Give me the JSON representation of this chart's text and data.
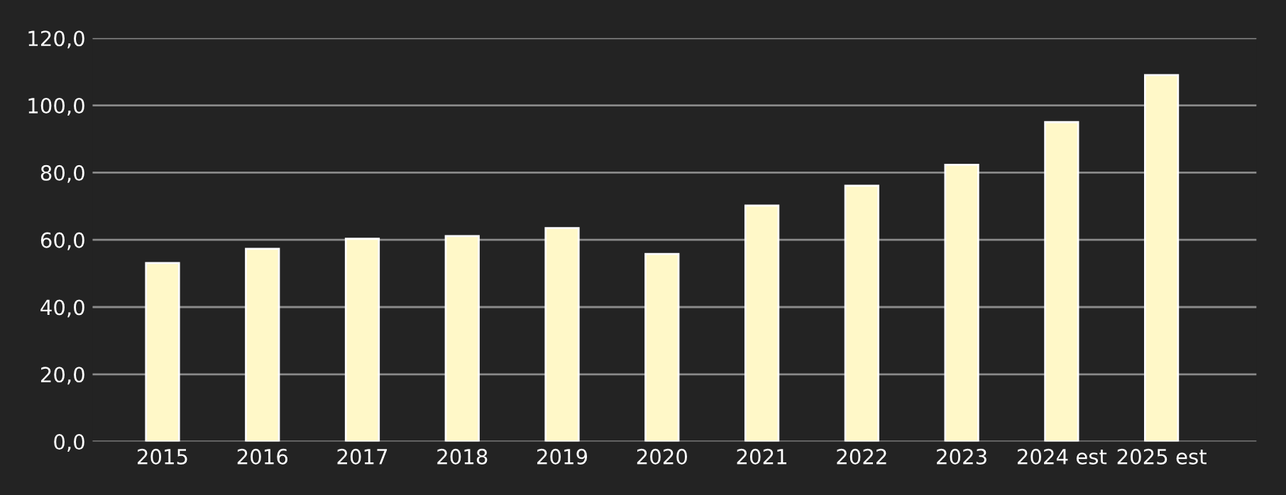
{
  "chart_data": {
    "type": "bar",
    "categories": [
      "2015",
      "2016",
      "2017",
      "2018",
      "2019",
      "2020",
      "2021",
      "2022",
      "2023",
      "2024 est",
      "2025 est"
    ],
    "values": [
      53.1,
      57.3,
      60.3,
      61.1,
      63.5,
      55.8,
      70.2,
      76.1,
      82.3,
      95.0,
      109.0
    ],
    "color": "#fff8c8",
    "ylim": [
      0,
      120
    ],
    "yticks": [
      {
        "value": 0,
        "label": "0,0"
      },
      {
        "value": 20,
        "label": "20,0"
      },
      {
        "value": 40,
        "label": "40,0"
      },
      {
        "value": 60,
        "label": "60,0"
      },
      {
        "value": 80,
        "label": "80,0"
      },
      {
        "value": 100,
        "label": "100,0"
      },
      {
        "value": 120,
        "label": "120,0"
      }
    ],
    "grid": "y"
  }
}
